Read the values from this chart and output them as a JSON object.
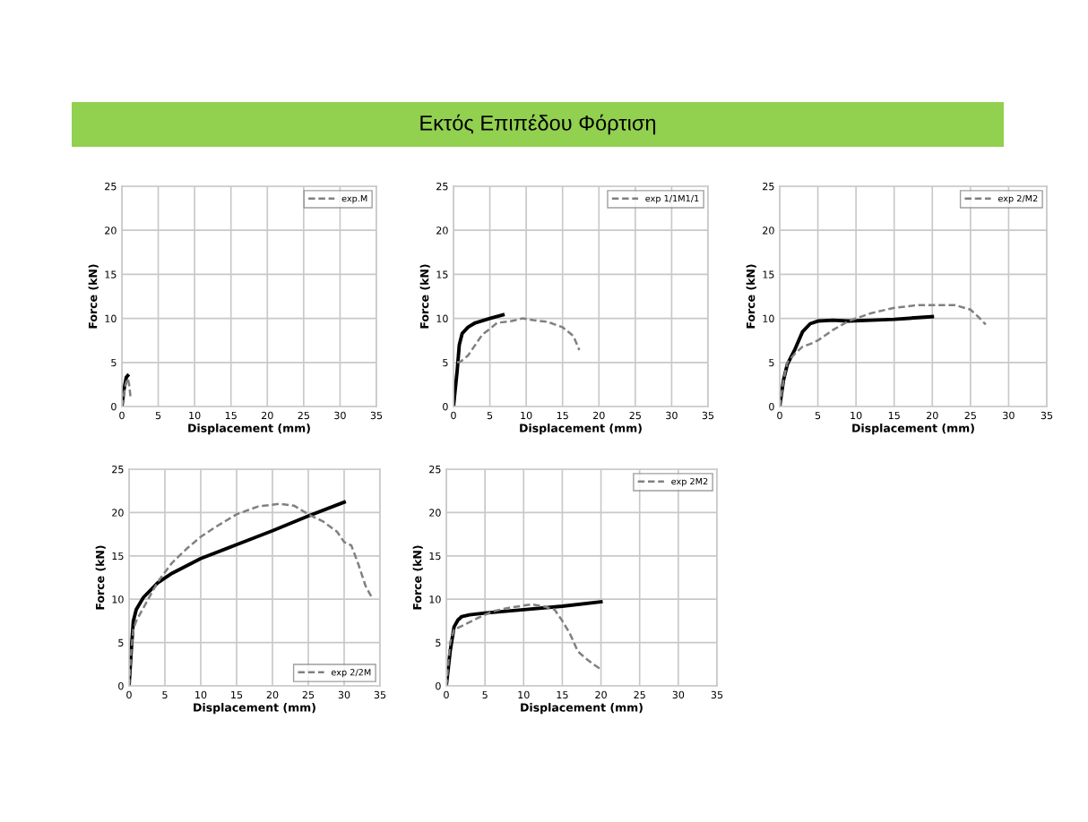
{
  "chart_data": [
    {
      "type": "other",
      "title": "Εκτός Επιπέδου Φόρτιση"
    },
    {
      "type": "line",
      "xlabel": "Displacement (mm)",
      "ylabel": "Force (kN)",
      "xlim": [
        0,
        35
      ],
      "ylim": [
        0,
        25
      ],
      "xticks": [
        0,
        5,
        10,
        15,
        20,
        25,
        30,
        35
      ],
      "yticks": [
        0,
        5,
        10,
        15,
        20,
        25
      ],
      "grid": true,
      "legend": "top right",
      "series": [
        {
          "color": "#000000",
          "line_style": "solid",
          "x": [
            0,
            0.3,
            0.6,
            0.8
          ],
          "values": [
            0,
            2,
            3.3,
            3.5
          ]
        },
        {
          "name": "exp.M",
          "color": "#808080",
          "line_style": "dashed",
          "x": [
            0,
            0.5,
            0.8,
            1.0,
            1.2
          ],
          "values": [
            0,
            2.5,
            3.2,
            2.5,
            1
          ]
        }
      ]
    },
    {
      "type": "line",
      "xlabel": "Displacement (mm)",
      "ylabel": "Force (kN)",
      "xlim": [
        0,
        35
      ],
      "ylim": [
        0,
        25
      ],
      "xticks": [
        0,
        5,
        10,
        15,
        20,
        25,
        30,
        35
      ],
      "yticks": [
        0,
        5,
        10,
        15,
        20,
        25
      ],
      "grid": true,
      "legend": "top right",
      "series": [
        {
          "color": "#000000",
          "line_style": "solid",
          "x": [
            0,
            0.5,
            0.8,
            1.2,
            2,
            3,
            5,
            6.8
          ],
          "values": [
            0,
            4,
            7,
            8.3,
            9,
            9.5,
            10,
            10.4
          ]
        },
        {
          "name": "exp 1/1M1/1",
          "color": "#808080",
          "line_style": "dashed",
          "x": [
            0.5,
            1,
            2,
            3,
            4,
            5,
            6,
            8,
            9.5,
            11,
            13,
            15,
            16.5,
            17.3
          ],
          "values": [
            5,
            5.1,
            5.8,
            7,
            8.2,
            8.8,
            9.5,
            9.7,
            10,
            9.8,
            9.6,
            9,
            8,
            6.4
          ]
        }
      ]
    },
    {
      "type": "line",
      "xlabel": "Displacement (mm)",
      "ylabel": "Force (kN)",
      "xlim": [
        0,
        35
      ],
      "ylim": [
        0,
        25
      ],
      "xticks": [
        0,
        5,
        10,
        15,
        20,
        25,
        30,
        35
      ],
      "yticks": [
        0,
        5,
        10,
        15,
        20,
        25
      ],
      "grid": true,
      "legend": "top right",
      "series": [
        {
          "color": "#000000",
          "line_style": "solid",
          "x": [
            0,
            0.5,
            1,
            2,
            3,
            4,
            5,
            7,
            9,
            12,
            15,
            20
          ],
          "values": [
            0,
            3,
            4.8,
            6.5,
            8.5,
            9.4,
            9.7,
            9.8,
            9.7,
            9.8,
            9.9,
            10.2
          ]
        },
        {
          "name": "exp 2/M2",
          "color": "#808080",
          "line_style": "dashed",
          "x": [
            0,
            0.5,
            1,
            2,
            3,
            4,
            5,
            7,
            9,
            12,
            15,
            18,
            23,
            25,
            26,
            27
          ],
          "values": [
            0,
            3,
            5,
            6,
            6.8,
            7.1,
            7.5,
            8.7,
            9.7,
            10.6,
            11.2,
            11.5,
            11.5,
            11,
            10.2,
            9.3
          ]
        }
      ]
    },
    {
      "type": "line",
      "xlabel": "Displacement (mm)",
      "ylabel": "Force (kN)",
      "xlim": [
        0,
        35
      ],
      "ylim": [
        0,
        25
      ],
      "xticks": [
        0,
        5,
        10,
        15,
        20,
        25,
        30,
        35
      ],
      "yticks": [
        0,
        5,
        10,
        15,
        20,
        25
      ],
      "grid": true,
      "legend": "bottom right",
      "series": [
        {
          "color": "#000000",
          "line_style": "solid",
          "x": [
            0,
            0.3,
            0.6,
            1,
            2,
            4,
            6,
            10,
            15,
            20,
            25,
            30
          ],
          "values": [
            0,
            4,
            7.5,
            8.8,
            10.2,
            11.9,
            13,
            14.7,
            16.3,
            17.9,
            19.6,
            21.2
          ]
        },
        {
          "name": "exp 2/2M",
          "color": "#808080",
          "line_style": "dashed",
          "x": [
            0,
            0.3,
            0.6,
            1,
            2,
            3,
            4,
            6,
            8,
            10,
            12,
            15,
            18,
            21,
            23,
            25,
            27,
            29,
            30,
            31,
            32,
            33,
            34
          ],
          "values": [
            0,
            4,
            6.5,
            7.5,
            9,
            10.5,
            12,
            14.2,
            15.8,
            17.2,
            18.3,
            19.8,
            20.7,
            21,
            20.8,
            19.8,
            19,
            17.8,
            16.6,
            16.2,
            14,
            11.5,
            10
          ]
        }
      ]
    },
    {
      "type": "line",
      "xlabel": "Displacement (mm)",
      "ylabel": "Force (kN)",
      "xlim": [
        0,
        35
      ],
      "ylim": [
        0,
        25
      ],
      "xticks": [
        0,
        5,
        10,
        15,
        20,
        25,
        30,
        35
      ],
      "yticks": [
        0,
        5,
        10,
        15,
        20,
        25
      ],
      "grid": true,
      "legend": "top right",
      "series": [
        {
          "color": "#000000",
          "line_style": "solid",
          "x": [
            0,
            0.5,
            1,
            1.5,
            2,
            3,
            5,
            10,
            15,
            20
          ],
          "values": [
            0,
            4,
            6.8,
            7.6,
            8,
            8.2,
            8.4,
            8.8,
            9.2,
            9.7
          ]
        },
        {
          "name": "exp 2M2",
          "color": "#808080",
          "line_style": "dashed",
          "x": [
            0,
            0.5,
            1,
            2,
            4,
            6,
            8,
            11,
            12.5,
            14,
            15,
            16,
            17,
            18,
            19,
            20
          ],
          "values": [
            0,
            5,
            6.5,
            6.9,
            7.8,
            8.6,
            9,
            9.4,
            9.2,
            8.8,
            7.5,
            6,
            4,
            3.2,
            2.5,
            1.9
          ]
        }
      ]
    }
  ]
}
